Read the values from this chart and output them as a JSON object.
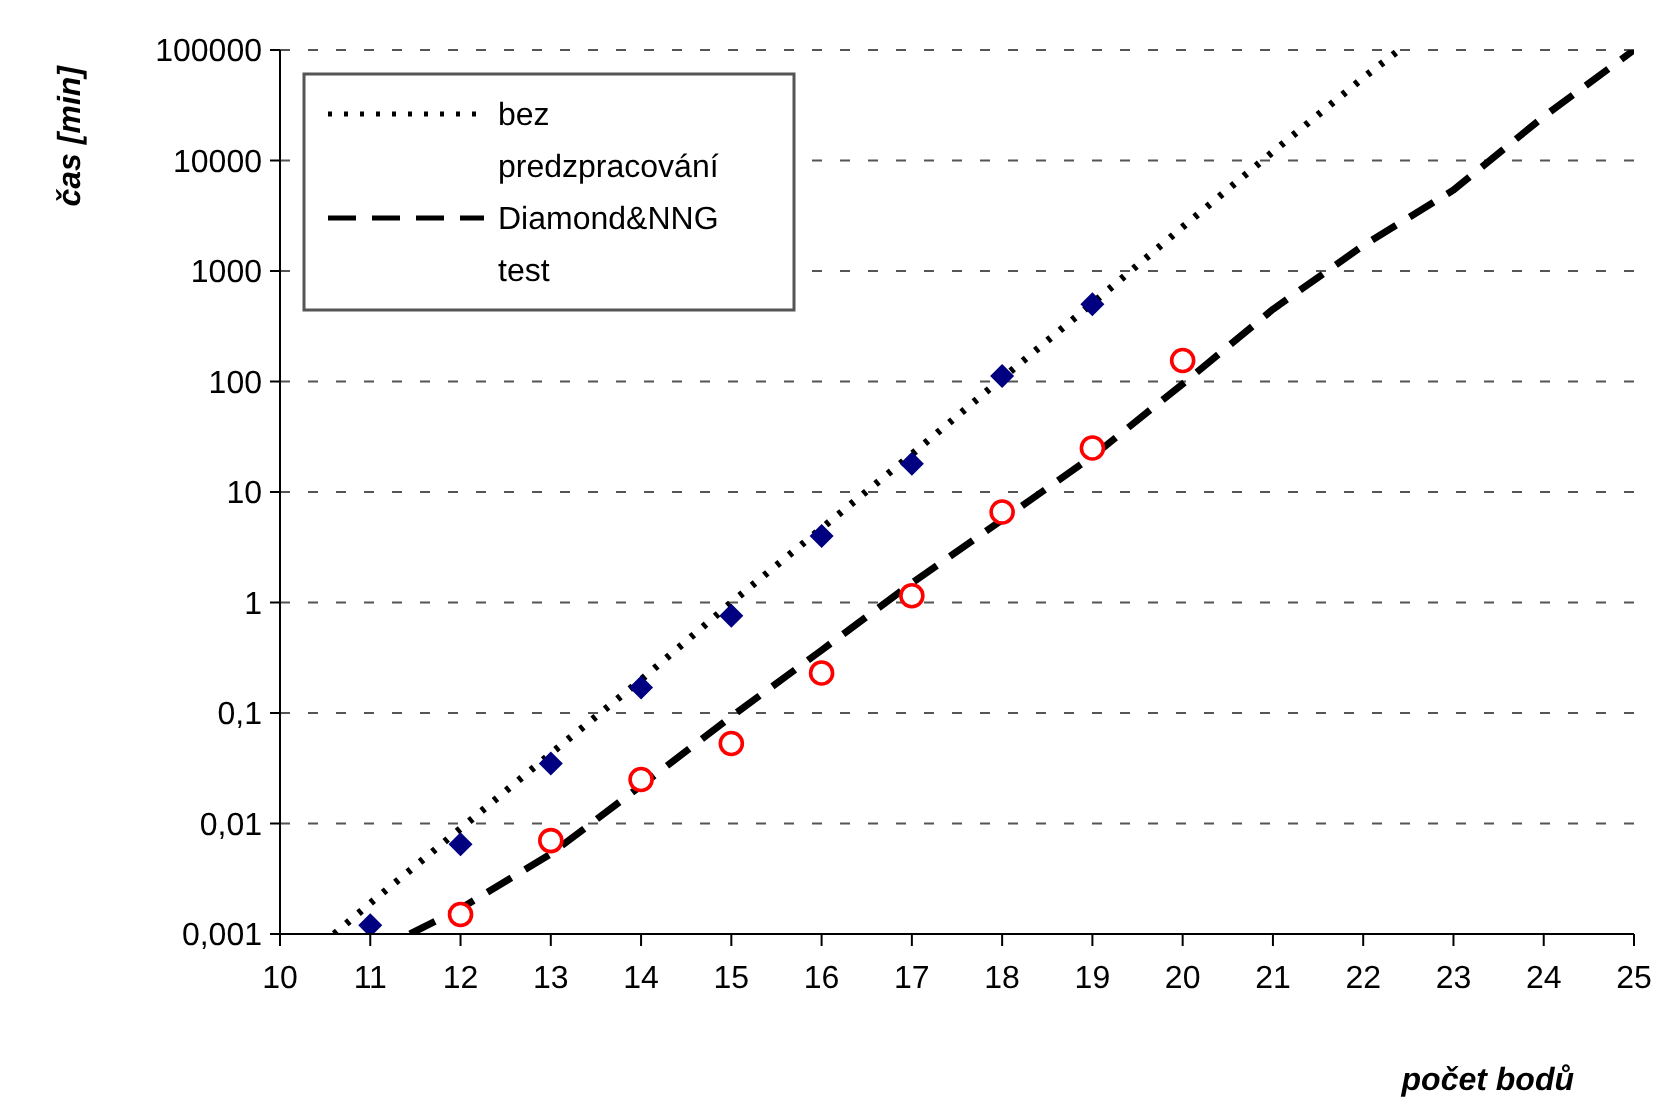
{
  "chart_data": {
    "type": "line",
    "xlabel": "počet bodů",
    "ylabel": "čas [min]",
    "log": "y",
    "grid": "y",
    "legend": "top left",
    "xlim": [
      10,
      25
    ],
    "xticks": [
      10,
      11,
      12,
      13,
      14,
      15,
      16,
      17,
      18,
      19,
      20,
      21,
      22,
      23,
      24,
      25
    ],
    "ylim": [
      0.001,
      100000
    ],
    "yticks": [
      {
        "value": 0.001,
        "label": "0,001"
      },
      {
        "value": 0.01,
        "label": "0,01"
      },
      {
        "value": 0.1,
        "label": "0,1"
      },
      1,
      10,
      100,
      1000,
      10000,
      100000
    ],
    "series": [
      {
        "name": "bez predzpracování",
        "color": "#000000",
        "line_style": "dotted",
        "marker": "none",
        "x": [
          10.6,
          11,
          12,
          13,
          14,
          15,
          16,
          17,
          18,
          19,
          20,
          21,
          22,
          22.4
        ],
        "values": [
          0.001,
          0.0019,
          0.009,
          0.043,
          0.2,
          1,
          4.7,
          22,
          107,
          510,
          2500,
          12000,
          56000,
          100000
        ]
      },
      {
        "name": "Diamond&NNG test",
        "color": "#000000",
        "line_style": "dashed",
        "marker": "none",
        "x": [
          11.44,
          12,
          13,
          14,
          15,
          16,
          17,
          18,
          19,
          20,
          21,
          22,
          23,
          24,
          25
        ],
        "values": [
          0.001,
          0.0017,
          0.0053,
          0.022,
          0.093,
          0.37,
          1.5,
          5.6,
          21,
          95,
          450,
          1700,
          5400,
          25000,
          100000
        ]
      },
      {
        "type": "scatter",
        "color": "#000080",
        "marker": "diamond",
        "x": [
          11,
          12,
          13,
          14,
          15,
          16,
          17,
          18,
          19
        ],
        "values": [
          0.0012,
          0.0065,
          0.035,
          0.17,
          0.76,
          4,
          18,
          112,
          500
        ]
      },
      {
        "type": "scatter",
        "color": "#ff0000",
        "marker": "circle",
        "x": [
          12,
          13,
          14,
          15,
          16,
          17,
          18,
          19,
          20
        ],
        "values": [
          0.0015,
          0.007,
          0.025,
          0.053,
          0.23,
          1.15,
          6.6,
          25,
          155
        ]
      }
    ]
  }
}
